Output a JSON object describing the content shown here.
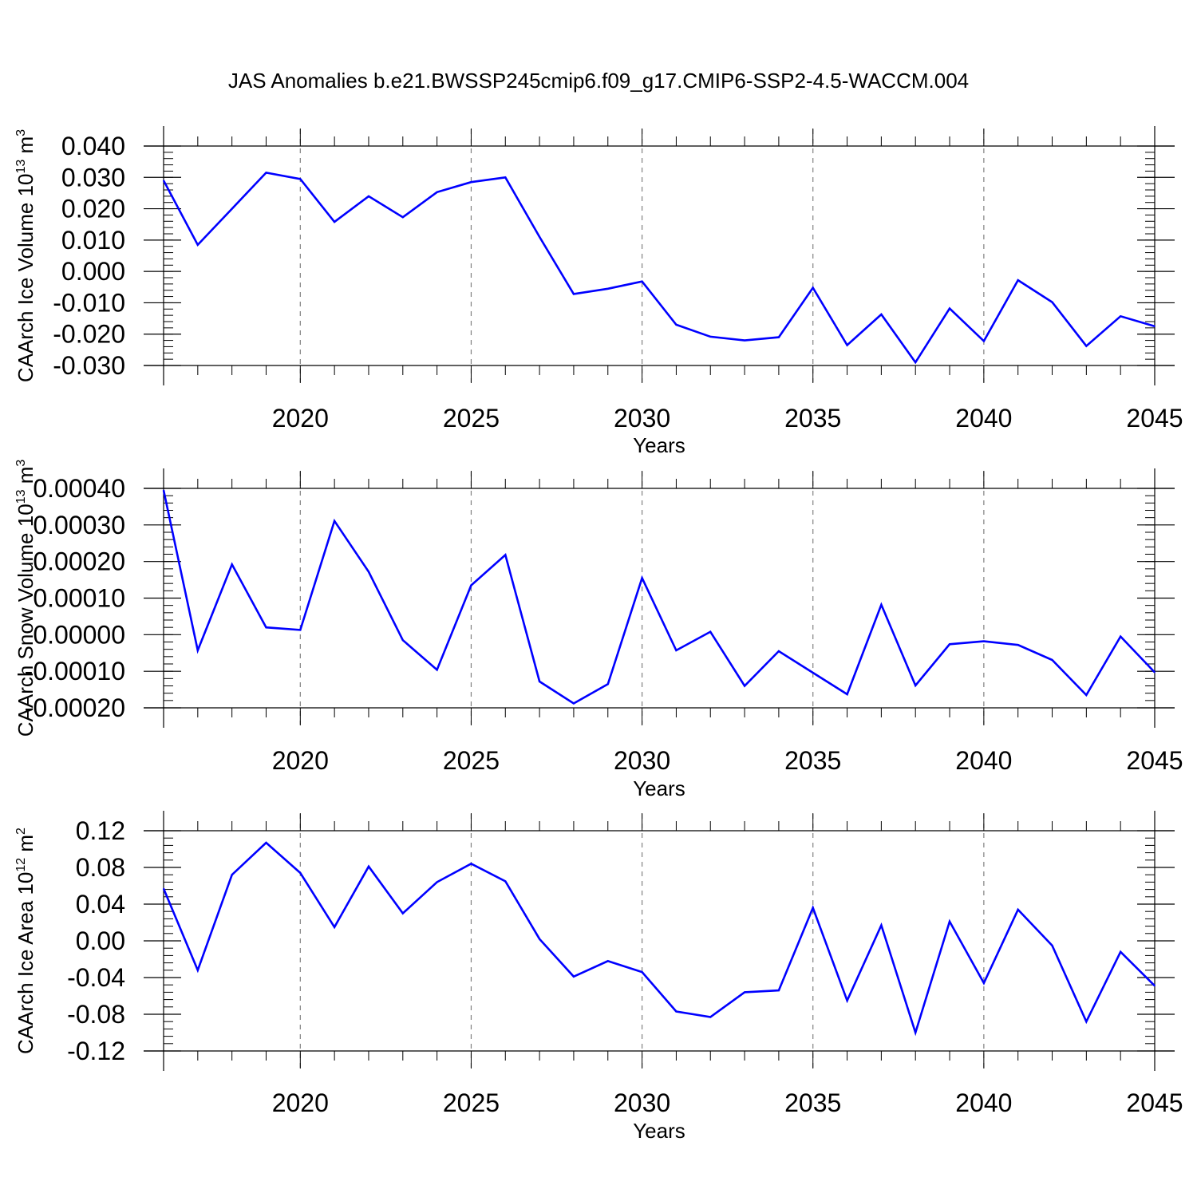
{
  "title": "JAS Anomalies b.e21.BWSSP245cmip6.f09_g17.CMIP6-SSP2-4.5-WACCM.004",
  "colors": {
    "line": "#0000ff",
    "axis": "#000000",
    "grid": "#808080"
  },
  "chart_data": [
    {
      "type": "line",
      "xlabel": "Years",
      "ylabel": "CAArch Ice Volume 10",
      "ylabel_sup": "13",
      "ylabel_unit": "m",
      "ylabel_unit_sup": "3",
      "xlim": [
        2016,
        2045
      ],
      "ylim": [
        -0.03,
        0.04
      ],
      "xticks": [
        "2020",
        "2025",
        "2030",
        "2035",
        "2040",
        "2045"
      ],
      "yticks": [
        "0.040",
        "0.030",
        "0.020",
        "0.010",
        "0.000",
        "-0.010",
        "-0.020",
        "-0.030"
      ],
      "grid_x": "dashed vertical at major ticks",
      "series": [
        {
          "x": [
            2016,
            2017,
            2018,
            2019,
            2020,
            2021,
            2022,
            2023,
            2024,
            2025,
            2026,
            2027,
            2028,
            2029,
            2030,
            2031,
            2032,
            2033,
            2034,
            2035,
            2036,
            2037,
            2038,
            2039,
            2040,
            2041,
            2042,
            2043,
            2044,
            2045
          ],
          "values": [
            0.029,
            0.0085,
            0.02,
            0.0315,
            0.0295,
            0.0158,
            0.024,
            0.0173,
            0.0253,
            0.0285,
            0.03,
            0.011,
            -0.0072,
            -0.0055,
            -0.0032,
            -0.017,
            -0.0208,
            -0.022,
            -0.021,
            -0.0052,
            -0.0235,
            -0.0137,
            -0.029,
            -0.0118,
            -0.0222,
            -0.0028,
            -0.0098,
            -0.0238,
            -0.0143,
            -0.0175
          ]
        }
      ]
    },
    {
      "type": "line",
      "xlabel": "Years",
      "ylabel": "CAArch Snow Volume 10",
      "ylabel_sup": "13",
      "ylabel_unit": "m",
      "ylabel_unit_sup": "3",
      "xlim": [
        2016,
        2045
      ],
      "ylim": [
        -0.0002,
        0.0004
      ],
      "xticks": [
        "2020",
        "2025",
        "2030",
        "2035",
        "2040",
        "2045"
      ],
      "yticks": [
        "0.00040",
        "0.00030",
        "0.00020",
        "0.00010",
        "0.00000",
        "-0.00010",
        "-0.00020"
      ],
      "grid_x": "dashed vertical at major ticks",
      "series": [
        {
          "x": [
            2016,
            2017,
            2018,
            2019,
            2020,
            2021,
            2022,
            2023,
            2024,
            2025,
            2026,
            2027,
            2028,
            2029,
            2030,
            2031,
            2032,
            2033,
            2034,
            2035,
            2036,
            2037,
            2038,
            2039,
            2040,
            2041,
            2042,
            2043,
            2044,
            2045
          ],
          "values": [
            0.000395,
            -4.3e-05,
            0.000192,
            2e-05,
            1.3e-05,
            0.000311,
            0.000172,
            -1.5e-05,
            -9.6e-05,
            0.000135,
            0.000218,
            -0.000128,
            -0.000188,
            -0.000135,
            0.000155,
            -4.3e-05,
            8e-06,
            -0.00014,
            -4.5e-05,
            -0.000104,
            -0.000163,
            8.2e-05,
            -0.000139,
            -2.6e-05,
            -1.8e-05,
            -2.8e-05,
            -6.9e-05,
            -0.000165,
            -5e-06,
            -0.000103
          ]
        }
      ]
    },
    {
      "type": "line",
      "xlabel": "Years",
      "ylabel": "CAArch Ice Area 10",
      "ylabel_sup": "12",
      "ylabel_unit": "m",
      "ylabel_unit_sup": "2",
      "xlim": [
        2016,
        2045
      ],
      "ylim": [
        -0.12,
        0.12
      ],
      "xticks": [
        "2020",
        "2025",
        "2030",
        "2035",
        "2040",
        "2045"
      ],
      "yticks": [
        "0.12",
        "0.08",
        "0.04",
        "0.00",
        "-0.04",
        "-0.08",
        "-0.12"
      ],
      "grid_x": "dashed vertical at major ticks",
      "series": [
        {
          "x": [
            2016,
            2017,
            2018,
            2019,
            2020,
            2021,
            2022,
            2023,
            2024,
            2025,
            2026,
            2027,
            2028,
            2029,
            2030,
            2031,
            2032,
            2033,
            2034,
            2035,
            2036,
            2037,
            2038,
            2039,
            2040,
            2041,
            2042,
            2043,
            2044,
            2045
          ],
          "values": [
            0.057,
            -0.032,
            0.072,
            0.107,
            0.074,
            0.015,
            0.081,
            0.03,
            0.064,
            0.084,
            0.065,
            0.002,
            -0.039,
            -0.022,
            -0.034,
            -0.077,
            -0.083,
            -0.056,
            -0.054,
            0.036,
            -0.065,
            0.017,
            -0.1,
            0.021,
            -0.046,
            0.034,
            -0.005,
            -0.088,
            -0.012,
            -0.049
          ]
        }
      ]
    }
  ]
}
